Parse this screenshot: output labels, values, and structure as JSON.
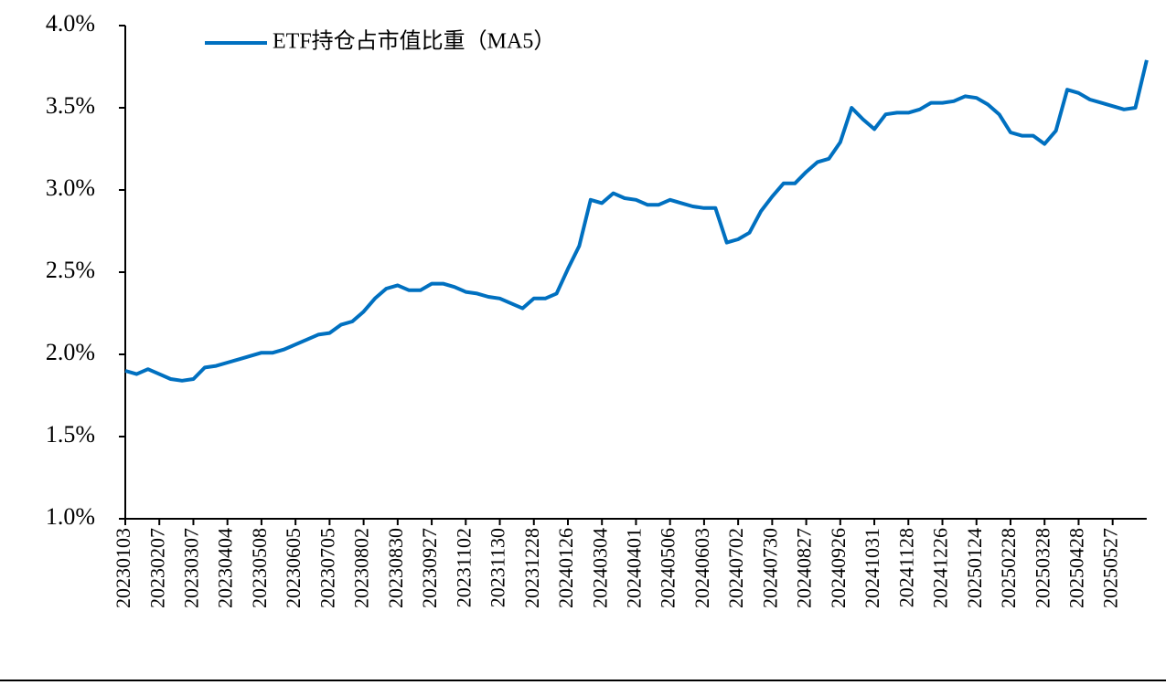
{
  "chart_data": {
    "type": "line",
    "categories": [
      "20230103",
      null,
      null,
      "20230207",
      null,
      null,
      "20230307",
      null,
      null,
      "20230404",
      null,
      null,
      "20230508",
      null,
      null,
      "20230605",
      null,
      null,
      "20230705",
      null,
      null,
      "20230802",
      null,
      null,
      "20230830",
      null,
      null,
      "20230927",
      null,
      null,
      "20231102",
      null,
      null,
      "20231130",
      null,
      null,
      "20231228",
      null,
      null,
      "20240126",
      null,
      null,
      "20240304",
      null,
      null,
      "20240401",
      null,
      null,
      "20240506",
      null,
      null,
      "20240603",
      null,
      null,
      "20240702",
      null,
      null,
      "20240730",
      null,
      null,
      "20240827",
      null,
      null,
      "20240926",
      null,
      null,
      "20241031",
      null,
      null,
      "20241128",
      null,
      null,
      "20241226",
      null,
      null,
      "20250124",
      null,
      null,
      "20250228",
      null,
      null,
      "20250328",
      null,
      null,
      "20250428",
      null,
      null,
      "20250527",
      null,
      null,
      null
    ],
    "series": [
      {
        "name": "ETF持仓占市值比重（MA5）",
        "color": "#0070c0",
        "values": [
          1.9,
          1.88,
          1.91,
          1.88,
          1.85,
          1.84,
          1.85,
          1.92,
          1.93,
          1.95,
          1.97,
          1.99,
          2.01,
          2.01,
          2.03,
          2.06,
          2.09,
          2.12,
          2.13,
          2.18,
          2.2,
          2.26,
          2.34,
          2.4,
          2.42,
          2.39,
          2.39,
          2.43,
          2.43,
          2.41,
          2.38,
          2.37,
          2.35,
          2.34,
          2.31,
          2.28,
          2.34,
          2.34,
          2.37,
          2.52,
          2.66,
          2.94,
          2.92,
          2.98,
          2.95,
          2.94,
          2.91,
          2.91,
          2.94,
          2.92,
          2.9,
          2.89,
          2.89,
          2.68,
          2.7,
          2.74,
          2.87,
          2.96,
          3.04,
          3.04,
          3.11,
          3.17,
          3.19,
          3.29,
          3.5,
          3.43,
          3.37,
          3.46,
          3.47,
          3.47,
          3.49,
          3.53,
          3.53,
          3.54,
          3.57,
          3.56,
          3.52,
          3.46,
          3.35,
          3.33,
          3.33,
          3.28,
          3.36,
          3.61,
          3.59,
          3.55,
          3.53,
          3.51,
          3.49,
          3.5,
          3.79
        ]
      }
    ],
    "ylim": [
      1.0,
      4.0
    ],
    "yticks": [
      {
        "value": 1.0,
        "label": "1.0%"
      },
      {
        "value": 1.5,
        "label": "1.5%"
      },
      {
        "value": 2.0,
        "label": "2.0%"
      },
      {
        "value": 2.5,
        "label": "2.5%"
      },
      {
        "value": 3.0,
        "label": "3.0%"
      },
      {
        "value": 3.5,
        "label": "3.5%"
      },
      {
        "value": 4.0,
        "label": "4.0%"
      }
    ],
    "legend": "top-left",
    "grid": false
  }
}
